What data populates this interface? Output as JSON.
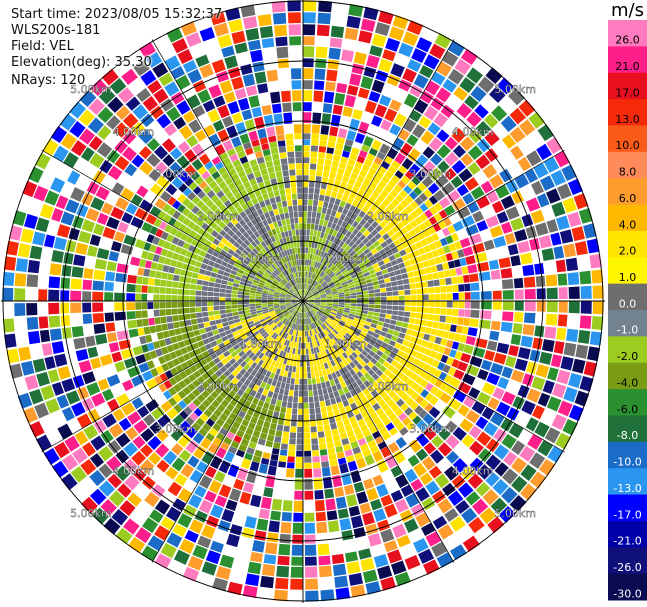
{
  "info": {
    "start_time": "Start time: 2023/08/05 15:32:37",
    "instrument": "WLS200s-181",
    "field": "Field: VEL",
    "elevation": "Elevation(deg): 35.30",
    "nrays": "NRays: 120"
  },
  "chart_data": {
    "type": "ppi",
    "field": "VEL",
    "units": "m/s",
    "n_rays": 120,
    "elevation_deg": 35.3,
    "range_rings": [
      "1.00km",
      "2.00km",
      "3.00km",
      "4.00km",
      "5.00km"
    ],
    "color_scale": {
      "title": "m/s",
      "ticks": [
        "26.0",
        "21.0",
        "17.0",
        "13.0",
        "10.0",
        "8.0",
        "6.0",
        "4.0",
        "2.0",
        "1.0",
        "0.0",
        "-1.0",
        "-2.0",
        "-4.0",
        "-6.0",
        "-8.0",
        "-10.0",
        "-13.0",
        "-17.0",
        "-21.0",
        "-26.0",
        "-30.0"
      ],
      "colors": [
        "#ff7bbf",
        "#ff1f8a",
        "#e8101e",
        "#f52a0a",
        "#fb5b18",
        "#ff8a5a",
        "#ff9c2e",
        "#ffb800",
        "#ffe400",
        "#fff600",
        "#6e6e6e",
        "#72828f",
        "#9ccc20",
        "#7a9c14",
        "#2a9030",
        "#20703a",
        "#1a6cc8",
        "#2a96f0",
        "#0000ff",
        "#0000a8",
        "#10107a",
        "#0a0a50"
      ],
      "vmin": -30.0,
      "vmax": 30.0
    }
  }
}
